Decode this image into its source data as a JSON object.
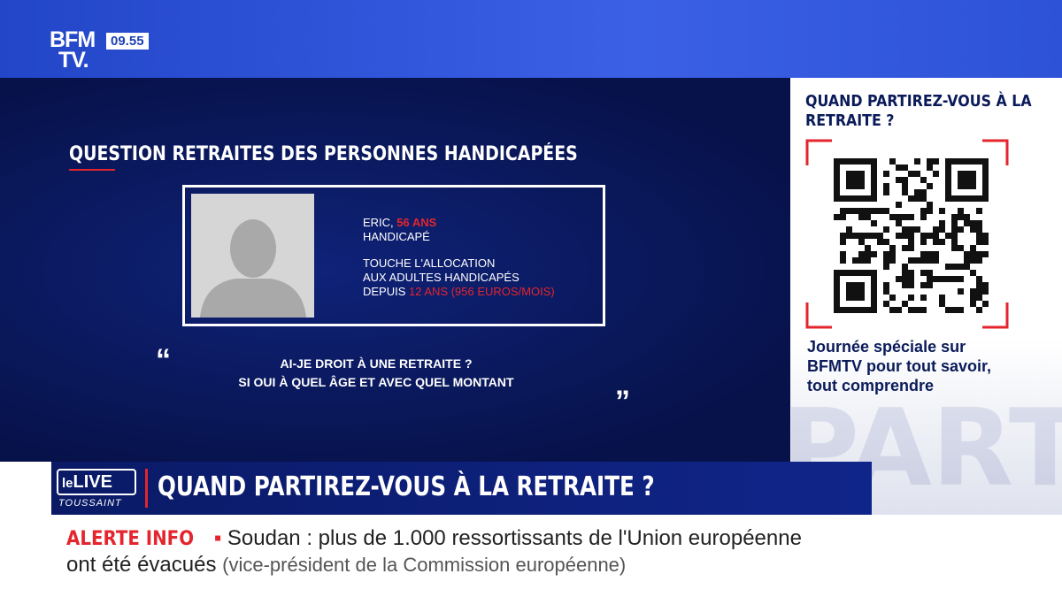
{
  "logo": {
    "line1": "BFM",
    "line2": "TV.",
    "time": "09.55"
  },
  "heading": "QUESTION RETRAITES DES PERSONNES HANDICAPÉES",
  "card": {
    "name": "ERIC,",
    "age": "56 ANS",
    "status": "HANDICAPÉ",
    "line1": "TOUCHE L'ALLOCATION",
    "line2": "AUX ADULTES HANDICAPÉS",
    "line3_prefix": "DEPUIS",
    "line3_highlight": "12 ANS (956 EUROS/MOIS)"
  },
  "quote": {
    "open": "“",
    "line1": "AI-JE DROIT À UNE RETRAITE ?",
    "line2": "SI OUI À QUEL ÂGE ET AVEC QUEL MONTANT",
    "close": "”"
  },
  "side_panel": {
    "title": "QUAND PARTIREZ-VOUS À LA RETRAITE ?",
    "text": "Journée spéciale sur BFMTV pour tout savoir, tout comprendre",
    "watermark": "PART"
  },
  "lower_third": {
    "badge_le": "le",
    "badge_live": "LIVE",
    "badge_show": "TOUSSAINT",
    "title": "QUAND PARTIREZ-VOUS À LA RETRAITE ?"
  },
  "ticker": {
    "label": "ALERTE INFO",
    "headline": "Soudan : plus de 1.000 ressortissants de l'Union européenne ont été évacués",
    "source": "(vice-président de la Commission européenne)"
  }
}
